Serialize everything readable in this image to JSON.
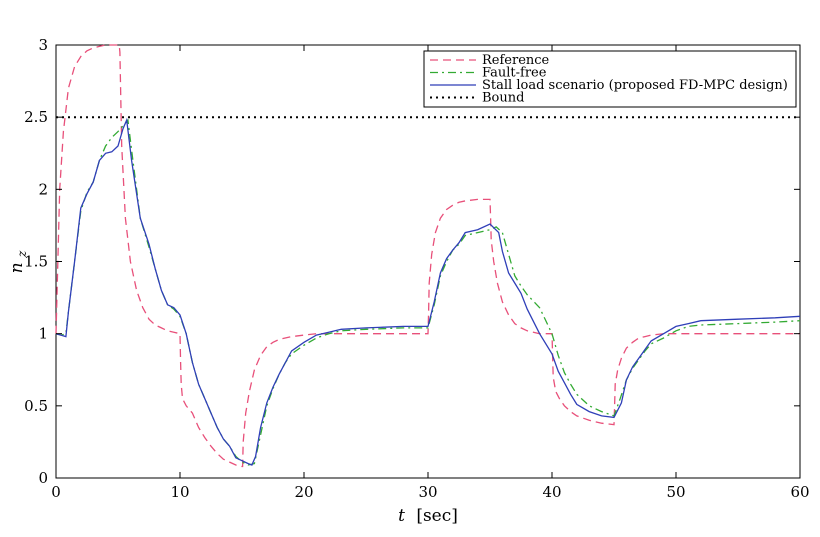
{
  "chart_data": {
    "type": "line",
    "xlabel_var": "t",
    "xlabel_unit": "[sec]",
    "ylabel_var": "n",
    "ylabel_sub": "z",
    "xlim": [
      0,
      60
    ],
    "ylim": [
      0,
      3
    ],
    "xticks": [
      0,
      10,
      20,
      30,
      40,
      50,
      60
    ],
    "yticks": [
      0,
      0.5,
      1,
      1.5,
      2,
      2.5,
      3
    ],
    "ytick_labels": [
      "0",
      "0.5",
      "1",
      "1.5",
      "2",
      "2.5",
      "3"
    ],
    "xtick_labels": [
      "0",
      "10",
      "20",
      "30",
      "40",
      "50",
      "60"
    ],
    "grid": false,
    "legend_position": "top-right",
    "series": [
      {
        "name": "Reference",
        "color": "#e8507a",
        "style": "dashed",
        "x": [
          0,
          0.3,
          0.6,
          1,
          1.5,
          2,
          2.5,
          3,
          3.5,
          4,
          4.5,
          5,
          5.1,
          5.15,
          5.3,
          5.6,
          6,
          6.5,
          7,
          7.5,
          8,
          8.5,
          9,
          9.5,
          10,
          10.05,
          10.1,
          10.2,
          10.5,
          11,
          11.5,
          12,
          12.5,
          13,
          13.5,
          14,
          14.5,
          15,
          15.05,
          15.1,
          15.3,
          15.6,
          16,
          16.5,
          17,
          17.5,
          18,
          19,
          20,
          21,
          22,
          23,
          25,
          28,
          30,
          30.05,
          30.1,
          30.3,
          30.6,
          31,
          31.5,
          32,
          32.5,
          33,
          34,
          35,
          35.05,
          35.1,
          35.3,
          35.6,
          36,
          36.5,
          37,
          37.5,
          38,
          39,
          40,
          40.05,
          40.1,
          40.3,
          40.6,
          41,
          41.5,
          42,
          43,
          44,
          45,
          45.05,
          45.1,
          45.3,
          45.6,
          46,
          46.5,
          47,
          47.5,
          48,
          49,
          50,
          52,
          55,
          58,
          60
        ],
        "y": [
          1.0,
          2.0,
          2.4,
          2.7,
          2.85,
          2.92,
          2.96,
          2.98,
          2.99,
          3.0,
          3.0,
          3.0,
          3.0,
          2.95,
          2.3,
          1.8,
          1.5,
          1.3,
          1.18,
          1.1,
          1.06,
          1.04,
          1.02,
          1.01,
          1.0,
          0.8,
          0.65,
          0.55,
          0.5,
          0.45,
          0.35,
          0.28,
          0.22,
          0.17,
          0.13,
          0.11,
          0.09,
          0.08,
          0.08,
          0.25,
          0.45,
          0.6,
          0.75,
          0.85,
          0.91,
          0.94,
          0.96,
          0.98,
          0.99,
          1.0,
          1.0,
          1.0,
          1.0,
          1.0,
          1.0,
          1.15,
          1.35,
          1.55,
          1.7,
          1.8,
          1.86,
          1.89,
          1.91,
          1.92,
          1.93,
          1.93,
          1.8,
          1.65,
          1.5,
          1.35,
          1.22,
          1.13,
          1.07,
          1.04,
          1.02,
          1.0,
          1.0,
          0.85,
          0.7,
          0.6,
          0.55,
          0.5,
          0.46,
          0.43,
          0.4,
          0.38,
          0.37,
          0.5,
          0.65,
          0.75,
          0.83,
          0.9,
          0.94,
          0.97,
          0.98,
          0.99,
          1.0,
          1.0,
          1.0,
          1.0,
          1.0,
          1.0
        ]
      },
      {
        "name": "Fault-free",
        "color": "#33aa33",
        "style": "dashdot",
        "x": [
          0,
          0.4,
          0.8,
          1,
          1.5,
          2,
          2.5,
          3,
          3.5,
          4,
          4.5,
          5,
          5.5,
          5.8,
          6.2,
          6.8,
          7.5,
          8,
          8.5,
          9,
          9.5,
          10,
          10.5,
          11,
          11.5,
          12,
          12.5,
          13,
          13.5,
          14,
          14.5,
          15,
          15.5,
          16,
          16.5,
          17,
          17.5,
          18,
          18.5,
          19,
          20,
          21,
          22,
          23,
          25,
          28,
          30,
          30.5,
          31,
          31.5,
          32,
          32.5,
          33,
          34,
          35,
          35.5,
          36,
          36.5,
          37,
          37.5,
          38,
          39,
          40,
          40.5,
          41,
          41.5,
          42,
          43,
          44,
          45,
          45.5,
          46,
          46.5,
          47,
          47.5,
          48,
          49,
          50,
          51,
          52,
          55,
          58,
          60
        ],
        "y": [
          1.0,
          0.99,
          1.0,
          1.15,
          1.5,
          1.85,
          1.98,
          2.05,
          2.2,
          2.3,
          2.36,
          2.4,
          2.45,
          2.48,
          2.2,
          1.8,
          1.6,
          1.45,
          1.3,
          1.2,
          1.17,
          1.12,
          1.0,
          0.8,
          0.65,
          0.55,
          0.45,
          0.35,
          0.27,
          0.22,
          0.15,
          0.11,
          0.09,
          0.1,
          0.3,
          0.5,
          0.62,
          0.72,
          0.8,
          0.86,
          0.92,
          0.97,
          1.0,
          1.02,
          1.03,
          1.04,
          1.04,
          1.2,
          1.4,
          1.5,
          1.58,
          1.62,
          1.68,
          1.7,
          1.72,
          1.74,
          1.7,
          1.55,
          1.4,
          1.33,
          1.27,
          1.18,
          1.0,
          0.85,
          0.73,
          0.65,
          0.58,
          0.5,
          0.46,
          0.43,
          0.55,
          0.68,
          0.76,
          0.82,
          0.88,
          0.93,
          0.97,
          1.02,
          1.05,
          1.06,
          1.07,
          1.08,
          1.09
        ]
      },
      {
        "name": "Stall load scenario (proposed FD-MPC design)",
        "color": "#2f3fb8",
        "style": "solid",
        "x": [
          0,
          0.4,
          0.8,
          1,
          1.5,
          2,
          2.5,
          3,
          3.5,
          4,
          4.5,
          5,
          5.4,
          5.7,
          6.1,
          6.8,
          7.5,
          8,
          8.5,
          9,
          9.5,
          10,
          10.5,
          11,
          11.5,
          12,
          12.5,
          13,
          13.5,
          14,
          14.5,
          15,
          15.5,
          15.8,
          16.1,
          16.5,
          17,
          17.5,
          18,
          18.5,
          19,
          20,
          21,
          22,
          23,
          25,
          28,
          30,
          30.5,
          31,
          31.5,
          32,
          32.5,
          33,
          34,
          35,
          35.7,
          36,
          36.5,
          37,
          37.5,
          38,
          39,
          40,
          40.5,
          41,
          41.5,
          42,
          43,
          44,
          45,
          45.6,
          46,
          46.5,
          47,
          47.5,
          48,
          49,
          50,
          51,
          52,
          55,
          58,
          60
        ],
        "y": [
          1.0,
          0.99,
          0.98,
          1.15,
          1.5,
          1.87,
          1.97,
          2.05,
          2.2,
          2.25,
          2.26,
          2.3,
          2.42,
          2.48,
          2.2,
          1.8,
          1.62,
          1.45,
          1.3,
          1.2,
          1.18,
          1.13,
          1.0,
          0.8,
          0.65,
          0.55,
          0.45,
          0.35,
          0.27,
          0.22,
          0.14,
          0.12,
          0.1,
          0.09,
          0.15,
          0.35,
          0.52,
          0.63,
          0.72,
          0.8,
          0.88,
          0.94,
          0.99,
          1.01,
          1.03,
          1.04,
          1.05,
          1.05,
          1.22,
          1.42,
          1.52,
          1.58,
          1.63,
          1.7,
          1.72,
          1.76,
          1.7,
          1.57,
          1.42,
          1.35,
          1.28,
          1.17,
          1.0,
          0.86,
          0.74,
          0.66,
          0.58,
          0.51,
          0.46,
          0.43,
          0.42,
          0.52,
          0.68,
          0.77,
          0.83,
          0.89,
          0.95,
          1.0,
          1.05,
          1.07,
          1.09,
          1.1,
          1.11,
          1.12
        ]
      },
      {
        "name": "Bound",
        "color": "#000000",
        "style": "dotted",
        "x": [
          0,
          60
        ],
        "y": [
          2.5,
          2.5
        ]
      }
    ]
  }
}
